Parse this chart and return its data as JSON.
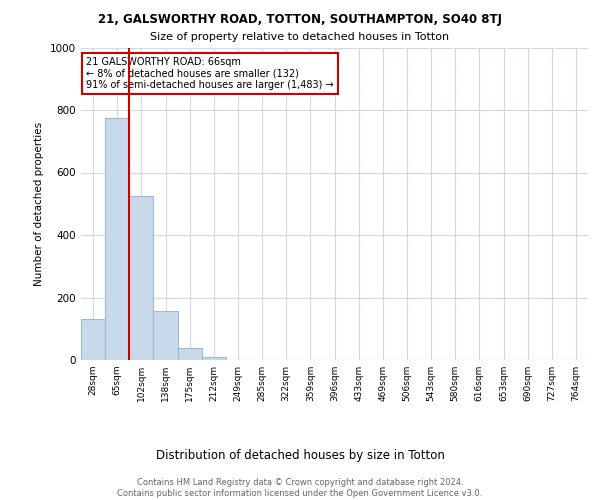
{
  "title1": "21, GALSWORTHY ROAD, TOTTON, SOUTHAMPTON, SO40 8TJ",
  "title2": "Size of property relative to detached houses in Totton",
  "xlabel": "Distribution of detached houses by size in Totton",
  "ylabel": "Number of detached properties",
  "bar_labels": [
    "28sqm",
    "65sqm",
    "102sqm",
    "138sqm",
    "175sqm",
    "212sqm",
    "249sqm",
    "285sqm",
    "322sqm",
    "359sqm",
    "396sqm",
    "433sqm",
    "469sqm",
    "506sqm",
    "543sqm",
    "580sqm",
    "616sqm",
    "653sqm",
    "690sqm",
    "727sqm",
    "764sqm"
  ],
  "bar_values": [
    132,
    775,
    525,
    157,
    38,
    10,
    0,
    0,
    0,
    0,
    0,
    0,
    0,
    0,
    0,
    0,
    0,
    0,
    0,
    0,
    0
  ],
  "bar_color": "#c9d9ec",
  "bar_edge_color": "#a0b8d8",
  "ylim": [
    0,
    1000
  ],
  "property_line_x": 1.5,
  "annotation_text": "21 GALSWORTHY ROAD: 66sqm\n← 8% of detached houses are smaller (132)\n91% of semi-detached houses are larger (1,483) →",
  "annotation_box_color": "#ffffff",
  "annotation_border_color": "#cc0000",
  "vline_color": "#cc0000",
  "footer_text": "Contains HM Land Registry data © Crown copyright and database right 2024.\nContains public sector information licensed under the Open Government Licence v3.0.",
  "background_color": "#ffffff",
  "grid_color": "#d0d8e8"
}
